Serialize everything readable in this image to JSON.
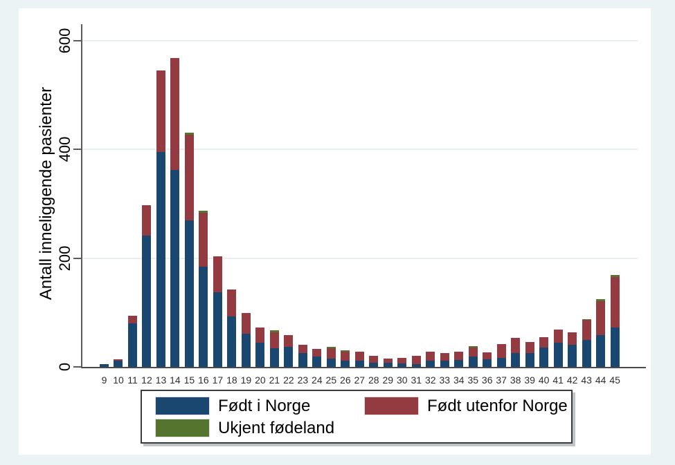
{
  "chart_data": {
    "type": "bar",
    "stacked": true,
    "title": "",
    "xlabel": "",
    "ylabel": "Antall inneliggende pasienter",
    "categories": [
      9,
      10,
      11,
      12,
      13,
      14,
      15,
      16,
      17,
      18,
      19,
      20,
      21,
      22,
      23,
      24,
      25,
      26,
      27,
      28,
      29,
      30,
      31,
      32,
      33,
      34,
      35,
      36,
      37,
      38,
      39,
      40,
      41,
      42,
      43,
      44,
      45
    ],
    "series": [
      {
        "name": "Født i Norge",
        "color": "#1a476f",
        "values": [
          5,
          12,
          80,
          242,
          396,
          362,
          269,
          185,
          137,
          93,
          61,
          44,
          34,
          37,
          25,
          19,
          15,
          11,
          11,
          8,
          8,
          6,
          5,
          11,
          11,
          13,
          19,
          14,
          17,
          25,
          25,
          36,
          45,
          41,
          50,
          59,
          73
        ]
      },
      {
        "name": "Født utenfor Norge",
        "color": "#933b41",
        "values": [
          0,
          2,
          14,
          56,
          150,
          206,
          158,
          99,
          67,
          50,
          38,
          29,
          30,
          22,
          16,
          14,
          19,
          17,
          17,
          12,
          7,
          11,
          15,
          17,
          14,
          15,
          17,
          13,
          25,
          28,
          21,
          19,
          24,
          22,
          36,
          62,
          92
        ]
      },
      {
        "name": "Ukjent fødeland",
        "color": "#55752f",
        "values": [
          0,
          0,
          0,
          0,
          0,
          0,
          4,
          4,
          0,
          0,
          0,
          0,
          3,
          0,
          0,
          0,
          3,
          3,
          0,
          0,
          0,
          0,
          0,
          0,
          0,
          0,
          2,
          0,
          0,
          0,
          0,
          0,
          0,
          0,
          2,
          3,
          4
        ]
      }
    ],
    "yticks": [
      0,
      200,
      400,
      600
    ],
    "ylim": [
      0,
      631
    ],
    "grid": true,
    "legend_position": "bottom-box"
  },
  "colors": {
    "plot_background": "#ffffff",
    "outer_background": "#ecf3f4",
    "gridline": "#e6f0f2",
    "axis": "#5a5a5a",
    "text": "#000000"
  }
}
